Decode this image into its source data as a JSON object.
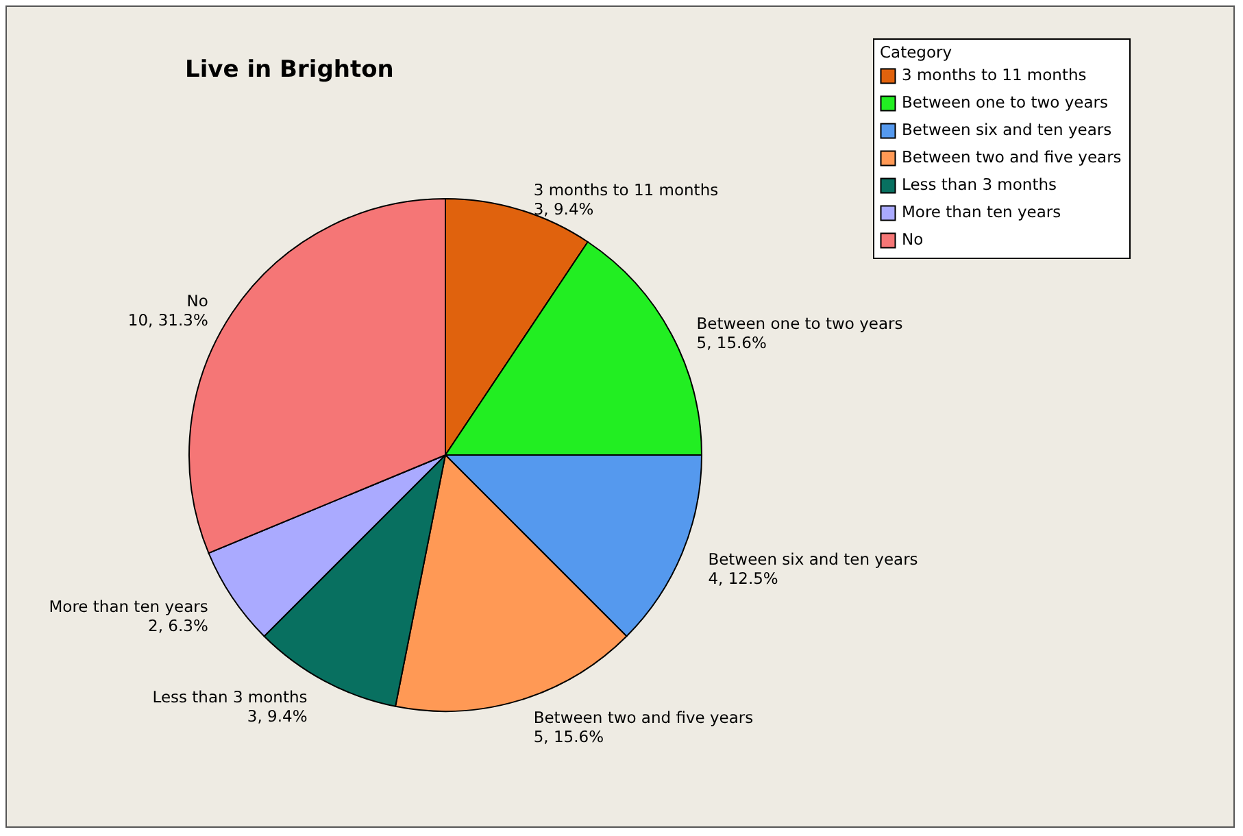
{
  "chart_data": {
    "type": "pie",
    "title": "Live in Brighton",
    "legend_title": "Category",
    "legend": "top right",
    "categories": [
      "3 months to 11 months",
      "Between one to two years",
      "Between six and ten years",
      "Between two and five years",
      "Less than 3 months",
      "More than ten years",
      "No"
    ],
    "values": [
      3,
      5,
      4,
      5,
      3,
      2,
      10
    ],
    "value_labels": [
      "3, 9.4%",
      "5, 15.6%",
      "4, 12.5%",
      "5, 15.6%",
      "3, 9.4%",
      "2, 6.3%",
      "10, 31.3%"
    ],
    "colors": [
      "#e0620d",
      "#22ee22",
      "#5599ee",
      "#ff9955",
      "#087060",
      "#aaaaff",
      "#f57676"
    ]
  }
}
